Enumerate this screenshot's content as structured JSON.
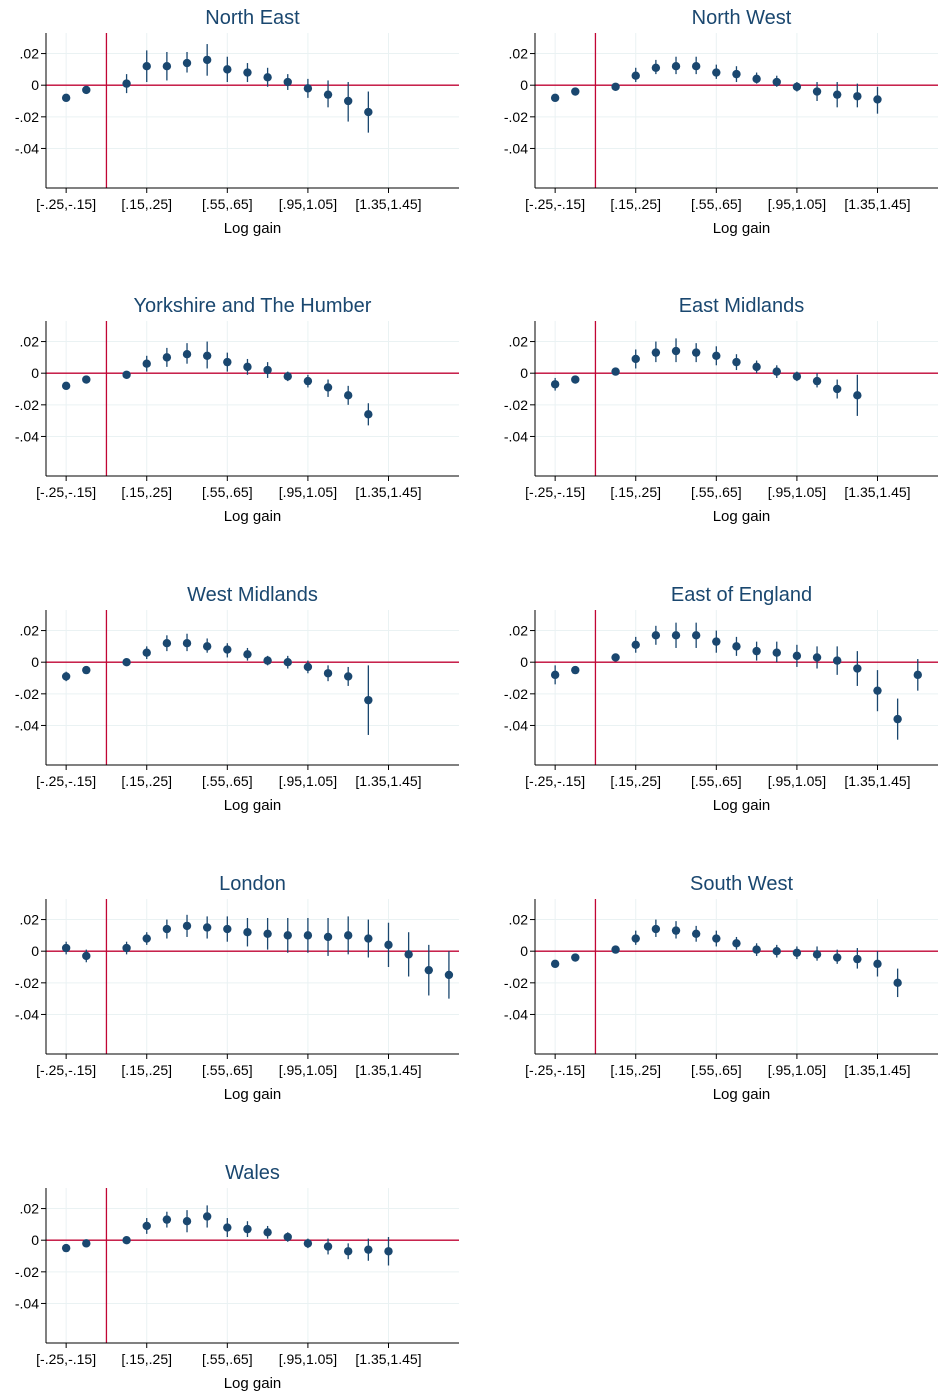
{
  "colors": {
    "marker": "#1a476f",
    "ref_line": "#c10534",
    "grid": "#eaf2f3",
    "axis": "#000000",
    "title": "#1a476f"
  },
  "chart_data": [
    {
      "type": "scatter",
      "title": "North East",
      "xlabel": "Log gain",
      "x_tick_labels": [
        "[-.25,-.15]",
        "[.15,.25]",
        "[.55,.65]",
        "[.95,1.05]",
        "[1.35,1.45]"
      ],
      "y_tick_labels": [
        ".02",
        "0",
        "-.02",
        "-.04"
      ],
      "ylim": [
        -0.065,
        0.033
      ],
      "bin_centers": [
        -0.2,
        -0.1,
        0.1,
        0.2,
        0.3,
        0.4,
        0.5,
        0.6,
        0.7,
        0.8,
        0.9,
        1.0,
        1.1,
        1.2,
        1.3
      ],
      "estimates": [
        -0.008,
        -0.003,
        0.001,
        0.012,
        0.012,
        0.014,
        0.016,
        0.01,
        0.008,
        0.005,
        0.002,
        -0.002,
        -0.006,
        -0.01,
        -0.017
      ],
      "ci_lower": [
        -0.01,
        -0.005,
        -0.005,
        0.002,
        0.003,
        0.008,
        0.006,
        0.002,
        0.002,
        -0.001,
        -0.003,
        -0.008,
        -0.014,
        -0.023,
        -0.03
      ],
      "ci_upper": [
        -0.006,
        -0.001,
        0.007,
        0.022,
        0.021,
        0.021,
        0.026,
        0.018,
        0.014,
        0.011,
        0.007,
        0.004,
        0.003,
        0.002,
        -0.004
      ],
      "grid": true,
      "reference_lines": {
        "y": 0,
        "x": 0
      }
    },
    {
      "type": "scatter",
      "title": "North West",
      "xlabel": "Log gain",
      "x_tick_labels": [
        "[-.25,-.15]",
        "[.15,.25]",
        "[.55,.65]",
        "[.95,1.05]",
        "[1.35,1.45]"
      ],
      "y_tick_labels": [
        ".02",
        "0",
        "-.02",
        "-.04"
      ],
      "ylim": [
        -0.065,
        0.033
      ],
      "bin_centers": [
        -0.2,
        -0.1,
        0.1,
        0.2,
        0.3,
        0.4,
        0.5,
        0.6,
        0.7,
        0.8,
        0.9,
        1.0,
        1.1,
        1.2,
        1.3,
        1.4
      ],
      "estimates": [
        -0.008,
        -0.004,
        -0.001,
        0.006,
        0.011,
        0.012,
        0.012,
        0.008,
        0.007,
        0.004,
        0.002,
        -0.001,
        -0.004,
        -0.006,
        -0.007,
        -0.009
      ],
      "ci_lower": [
        -0.009,
        -0.005,
        -0.003,
        0.002,
        0.007,
        0.007,
        0.007,
        0.004,
        0.002,
        0.001,
        -0.001,
        -0.004,
        -0.01,
        -0.014,
        -0.014,
        -0.018
      ],
      "ci_upper": [
        -0.007,
        -0.003,
        0.001,
        0.011,
        0.016,
        0.018,
        0.018,
        0.013,
        0.012,
        0.008,
        0.006,
        0.002,
        0.002,
        0.002,
        0.001,
        -0.001
      ],
      "grid": true,
      "reference_lines": {
        "y": 0,
        "x": 0
      }
    },
    {
      "type": "scatter",
      "title": "Yorkshire and The Humber",
      "xlabel": "Log gain",
      "x_tick_labels": [
        "[-.25,-.15]",
        "[.15,.25]",
        "[.55,.65]",
        "[.95,1.05]",
        "[1.35,1.45]"
      ],
      "y_tick_labels": [
        ".02",
        "0",
        "-.02",
        "-.04"
      ],
      "ylim": [
        -0.065,
        0.033
      ],
      "bin_centers": [
        -0.2,
        -0.1,
        0.1,
        0.2,
        0.3,
        0.4,
        0.5,
        0.6,
        0.7,
        0.8,
        0.9,
        1.0,
        1.1,
        1.2,
        1.3
      ],
      "estimates": [
        -0.008,
        -0.004,
        -0.001,
        0.006,
        0.01,
        0.012,
        0.011,
        0.007,
        0.004,
        0.002,
        -0.002,
        -0.005,
        -0.009,
        -0.014,
        -0.026
      ],
      "ci_lower": [
        -0.009,
        -0.005,
        -0.003,
        0.001,
        0.004,
        0.006,
        0.003,
        0.001,
        -0.001,
        -0.003,
        -0.005,
        -0.009,
        -0.015,
        -0.02,
        -0.033
      ],
      "ci_upper": [
        -0.007,
        -0.003,
        0.001,
        0.011,
        0.016,
        0.019,
        0.02,
        0.013,
        0.009,
        0.007,
        0.001,
        -0.001,
        -0.004,
        -0.008,
        -0.019
      ],
      "grid": true,
      "reference_lines": {
        "y": 0,
        "x": 0
      }
    },
    {
      "type": "scatter",
      "title": "East Midlands",
      "xlabel": "Log gain",
      "x_tick_labels": [
        "[-.25,-.15]",
        "[.15,.25]",
        "[.55,.65]",
        "[.95,1.05]",
        "[1.35,1.45]"
      ],
      "y_tick_labels": [
        ".02",
        "0",
        "-.02",
        "-.04"
      ],
      "ylim": [
        -0.065,
        0.033
      ],
      "bin_centers": [
        -0.2,
        -0.1,
        0.1,
        0.2,
        0.3,
        0.4,
        0.5,
        0.6,
        0.7,
        0.8,
        0.9,
        1.0,
        1.1,
        1.2,
        1.3
      ],
      "estimates": [
        -0.007,
        -0.004,
        0.001,
        0.009,
        0.013,
        0.014,
        0.013,
        0.011,
        0.007,
        0.004,
        0.001,
        -0.002,
        -0.005,
        -0.01,
        -0.014
      ],
      "ci_lower": [
        -0.011,
        -0.005,
        -0.001,
        0.003,
        0.007,
        0.007,
        0.007,
        0.005,
        0.002,
        0.0,
        -0.003,
        -0.005,
        -0.009,
        -0.016,
        -0.027
      ],
      "ci_upper": [
        -0.003,
        -0.003,
        0.003,
        0.015,
        0.02,
        0.022,
        0.019,
        0.017,
        0.012,
        0.008,
        0.005,
        0.001,
        0.0,
        -0.004,
        -0.001
      ],
      "grid": true,
      "reference_lines": {
        "y": 0,
        "x": 0
      }
    },
    {
      "type": "scatter",
      "title": "West Midlands",
      "xlabel": "Log gain",
      "x_tick_labels": [
        "[-.25,-.15]",
        "[.15,.25]",
        "[.55,.65]",
        "[.95,1.05]",
        "[1.35,1.45]"
      ],
      "y_tick_labels": [
        ".02",
        "0",
        "-.02",
        "-.04"
      ],
      "ylim": [
        -0.065,
        0.033
      ],
      "bin_centers": [
        -0.2,
        -0.1,
        0.1,
        0.2,
        0.3,
        0.4,
        0.5,
        0.6,
        0.7,
        0.8,
        0.9,
        1.0,
        1.1,
        1.2,
        1.3
      ],
      "estimates": [
        -0.009,
        -0.005,
        0.0,
        0.006,
        0.012,
        0.012,
        0.01,
        0.008,
        0.005,
        0.001,
        0.0,
        -0.003,
        -0.007,
        -0.009,
        -0.024
      ],
      "ci_lower": [
        -0.012,
        -0.006,
        -0.002,
        0.002,
        0.007,
        0.007,
        0.006,
        0.003,
        0.001,
        -0.002,
        -0.004,
        -0.007,
        -0.012,
        -0.015,
        -0.046
      ],
      "ci_upper": [
        -0.006,
        -0.004,
        0.002,
        0.01,
        0.017,
        0.018,
        0.015,
        0.012,
        0.009,
        0.004,
        0.004,
        0.001,
        -0.002,
        -0.003,
        -0.002
      ],
      "grid": true,
      "reference_lines": {
        "y": 0,
        "x": 0
      }
    },
    {
      "type": "scatter",
      "title": "East of England",
      "xlabel": "Log gain",
      "x_tick_labels": [
        "[-.25,-.15]",
        "[.15,.25]",
        "[.55,.65]",
        "[.95,1.05]",
        "[1.35,1.45]"
      ],
      "y_tick_labels": [
        ".02",
        "0",
        "-.02",
        "-.04"
      ],
      "ylim": [
        -0.065,
        0.033
      ],
      "bin_centers": [
        -0.2,
        -0.1,
        0.1,
        0.2,
        0.3,
        0.4,
        0.5,
        0.6,
        0.7,
        0.8,
        0.9,
        1.0,
        1.1,
        1.2,
        1.3,
        1.4,
        1.5,
        1.6
      ],
      "estimates": [
        -0.008,
        -0.005,
        0.003,
        0.011,
        0.017,
        0.017,
        0.017,
        0.013,
        0.01,
        0.007,
        0.006,
        0.004,
        0.003,
        0.001,
        -0.004,
        -0.018,
        -0.036,
        -0.008
      ],
      "ci_lower": [
        -0.014,
        -0.006,
        0.001,
        0.006,
        0.011,
        0.009,
        0.009,
        0.006,
        0.004,
        0.001,
        0.0,
        -0.003,
        -0.004,
        -0.008,
        -0.015,
        -0.031,
        -0.049,
        -0.018
      ],
      "ci_upper": [
        -0.002,
        -0.004,
        0.005,
        0.016,
        0.023,
        0.025,
        0.025,
        0.02,
        0.016,
        0.013,
        0.013,
        0.011,
        0.01,
        0.01,
        0.007,
        -0.005,
        -0.023,
        0.002
      ],
      "grid": true,
      "reference_lines": {
        "y": 0,
        "x": 0
      }
    },
    {
      "type": "scatter",
      "title": "London",
      "xlabel": "Log gain",
      "x_tick_labels": [
        "[-.25,-.15]",
        "[.15,.25]",
        "[.55,.65]",
        "[.95,1.05]",
        "[1.35,1.45]"
      ],
      "y_tick_labels": [
        ".02",
        "0",
        "-.02",
        "-.04"
      ],
      "ylim": [
        -0.065,
        0.033
      ],
      "bin_centers": [
        -0.2,
        -0.1,
        0.1,
        0.2,
        0.3,
        0.4,
        0.5,
        0.6,
        0.7,
        0.8,
        0.9,
        1.0,
        1.1,
        1.2,
        1.3,
        1.4,
        1.5,
        1.6,
        1.7
      ],
      "estimates": [
        0.002,
        -0.003,
        0.002,
        0.008,
        0.014,
        0.016,
        0.015,
        0.014,
        0.012,
        0.011,
        0.01,
        0.01,
        0.009,
        0.01,
        0.008,
        0.004,
        -0.002,
        -0.012,
        -0.015
      ],
      "ci_lower": [
        -0.002,
        -0.007,
        -0.002,
        0.004,
        0.008,
        0.009,
        0.008,
        0.006,
        0.003,
        0.001,
        -0.001,
        -0.001,
        -0.003,
        -0.002,
        -0.004,
        -0.01,
        -0.016,
        -0.028,
        -0.03
      ],
      "ci_upper": [
        0.006,
        0.001,
        0.006,
        0.012,
        0.02,
        0.023,
        0.022,
        0.022,
        0.021,
        0.021,
        0.021,
        0.021,
        0.021,
        0.022,
        0.02,
        0.018,
        0.012,
        0.004,
        0.0
      ],
      "grid": true,
      "reference_lines": {
        "y": 0,
        "x": 0
      }
    },
    {
      "type": "scatter",
      "title": "South West",
      "xlabel": "Log gain",
      "x_tick_labels": [
        "[-.25,-.15]",
        "[.15,.25]",
        "[.55,.65]",
        "[.95,1.05]",
        "[1.35,1.45]"
      ],
      "y_tick_labels": [
        ".02",
        "0",
        "-.02",
        "-.04"
      ],
      "ylim": [
        -0.065,
        0.033
      ],
      "bin_centers": [
        -0.2,
        -0.1,
        0.1,
        0.2,
        0.3,
        0.4,
        0.5,
        0.6,
        0.7,
        0.8,
        0.9,
        1.0,
        1.1,
        1.2,
        1.3,
        1.4,
        1.5
      ],
      "estimates": [
        -0.008,
        -0.004,
        0.001,
        0.008,
        0.014,
        0.013,
        0.011,
        0.008,
        0.005,
        0.001,
        0.0,
        -0.001,
        -0.002,
        -0.004,
        -0.005,
        -0.008,
        -0.02
      ],
      "ci_lower": [
        -0.009,
        -0.005,
        -0.001,
        0.004,
        0.009,
        0.008,
        0.006,
        0.003,
        0.001,
        -0.003,
        -0.004,
        -0.005,
        -0.006,
        -0.008,
        -0.011,
        -0.016,
        -0.029
      ],
      "ci_upper": [
        -0.007,
        -0.003,
        0.003,
        0.013,
        0.02,
        0.019,
        0.016,
        0.013,
        0.009,
        0.005,
        0.004,
        0.003,
        0.003,
        0.001,
        0.002,
        0.0,
        -0.011
      ],
      "grid": true,
      "reference_lines": {
        "y": 0,
        "x": 0
      }
    },
    {
      "type": "scatter",
      "title": "Wales",
      "xlabel": "Log gain",
      "x_tick_labels": [
        "[-.25,-.15]",
        "[.15,.25]",
        "[.55,.65]",
        "[.95,1.05]",
        "[1.35,1.45]"
      ],
      "y_tick_labels": [
        ".02",
        "0",
        "-.02",
        "-.04"
      ],
      "ylim": [
        -0.065,
        0.033
      ],
      "bin_centers": [
        -0.2,
        -0.1,
        0.1,
        0.2,
        0.3,
        0.4,
        0.5,
        0.6,
        0.7,
        0.8,
        0.9,
        1.0,
        1.1,
        1.2,
        1.3,
        1.4
      ],
      "estimates": [
        -0.005,
        -0.002,
        0.0,
        0.009,
        0.013,
        0.012,
        0.015,
        0.008,
        0.007,
        0.005,
        0.002,
        -0.002,
        -0.004,
        -0.007,
        -0.006,
        -0.007
      ],
      "ci_lower": [
        -0.006,
        -0.003,
        -0.002,
        0.004,
        0.008,
        0.005,
        0.008,
        0.002,
        0.002,
        0.001,
        -0.001,
        -0.005,
        -0.009,
        -0.012,
        -0.013,
        -0.016
      ],
      "ci_upper": [
        -0.004,
        -0.001,
        0.002,
        0.014,
        0.018,
        0.019,
        0.022,
        0.014,
        0.012,
        0.009,
        0.005,
        0.001,
        0.001,
        -0.002,
        0.001,
        0.002
      ],
      "grid": true,
      "reference_lines": {
        "y": 0,
        "x": 0
      }
    }
  ]
}
